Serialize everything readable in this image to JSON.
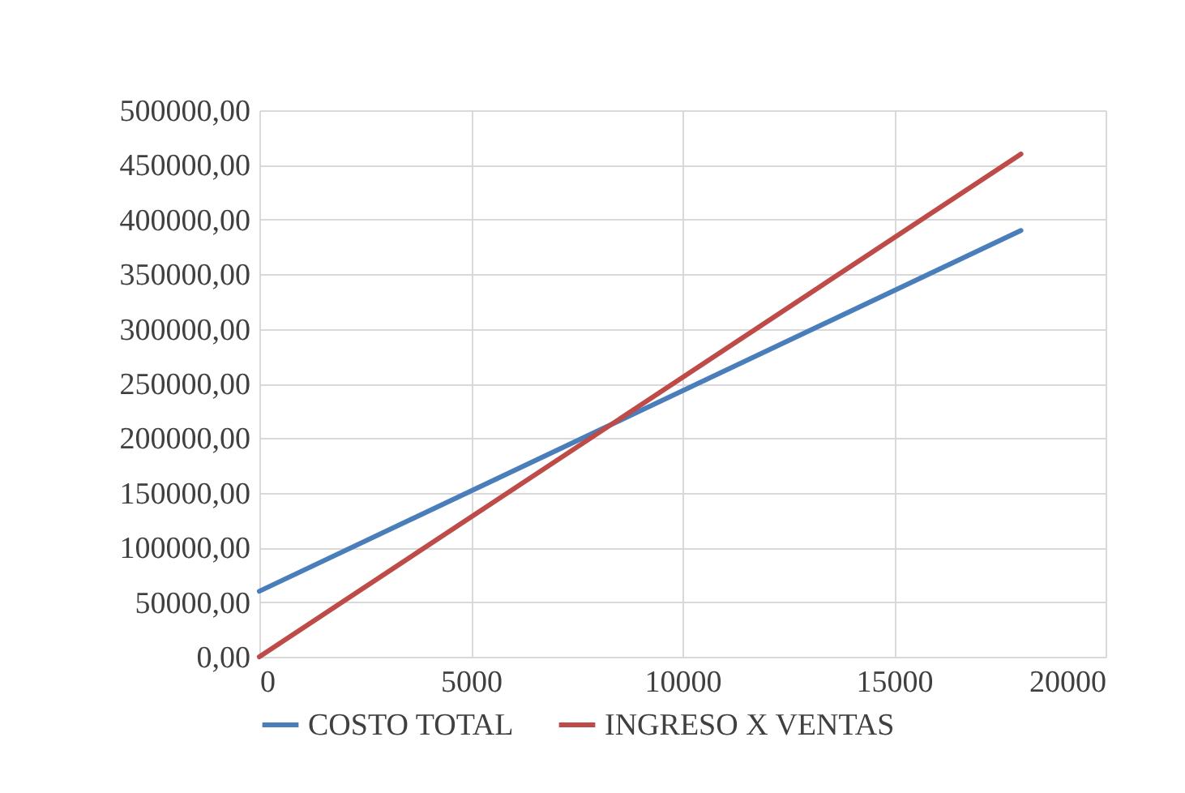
{
  "chart_data": {
    "type": "line",
    "x": [
      0,
      18000
    ],
    "series": [
      {
        "name": "COSTO TOTAL",
        "color": "#4a7ebb",
        "values": [
          60000,
          390000
        ]
      },
      {
        "name": "INGRESO X VENTAS",
        "color": "#be4b48",
        "values": [
          0,
          460000
        ]
      }
    ],
    "xlim": [
      0,
      20000
    ],
    "xticks": [
      0,
      5000,
      10000,
      15000,
      20000
    ],
    "ylim": [
      0,
      500000
    ],
    "yticks": [
      {
        "value": 0,
        "label": "0,00"
      },
      {
        "value": 50000,
        "label": "50000,00"
      },
      {
        "value": 100000,
        "label": "100000,00"
      },
      {
        "value": 150000,
        "label": "150000,00"
      },
      {
        "value": 200000,
        "label": "200000,00"
      },
      {
        "value": 250000,
        "label": "250000,00"
      },
      {
        "value": 300000,
        "label": "300000,00"
      },
      {
        "value": 350000,
        "label": "350000,00"
      },
      {
        "value": 400000,
        "label": "400000,00"
      },
      {
        "value": 450000,
        "label": "450000,00"
      },
      {
        "value": 500000,
        "label": "500000,00"
      }
    ],
    "grid": true,
    "legend": "bottom",
    "marker": "none",
    "line_style": "solid"
  }
}
